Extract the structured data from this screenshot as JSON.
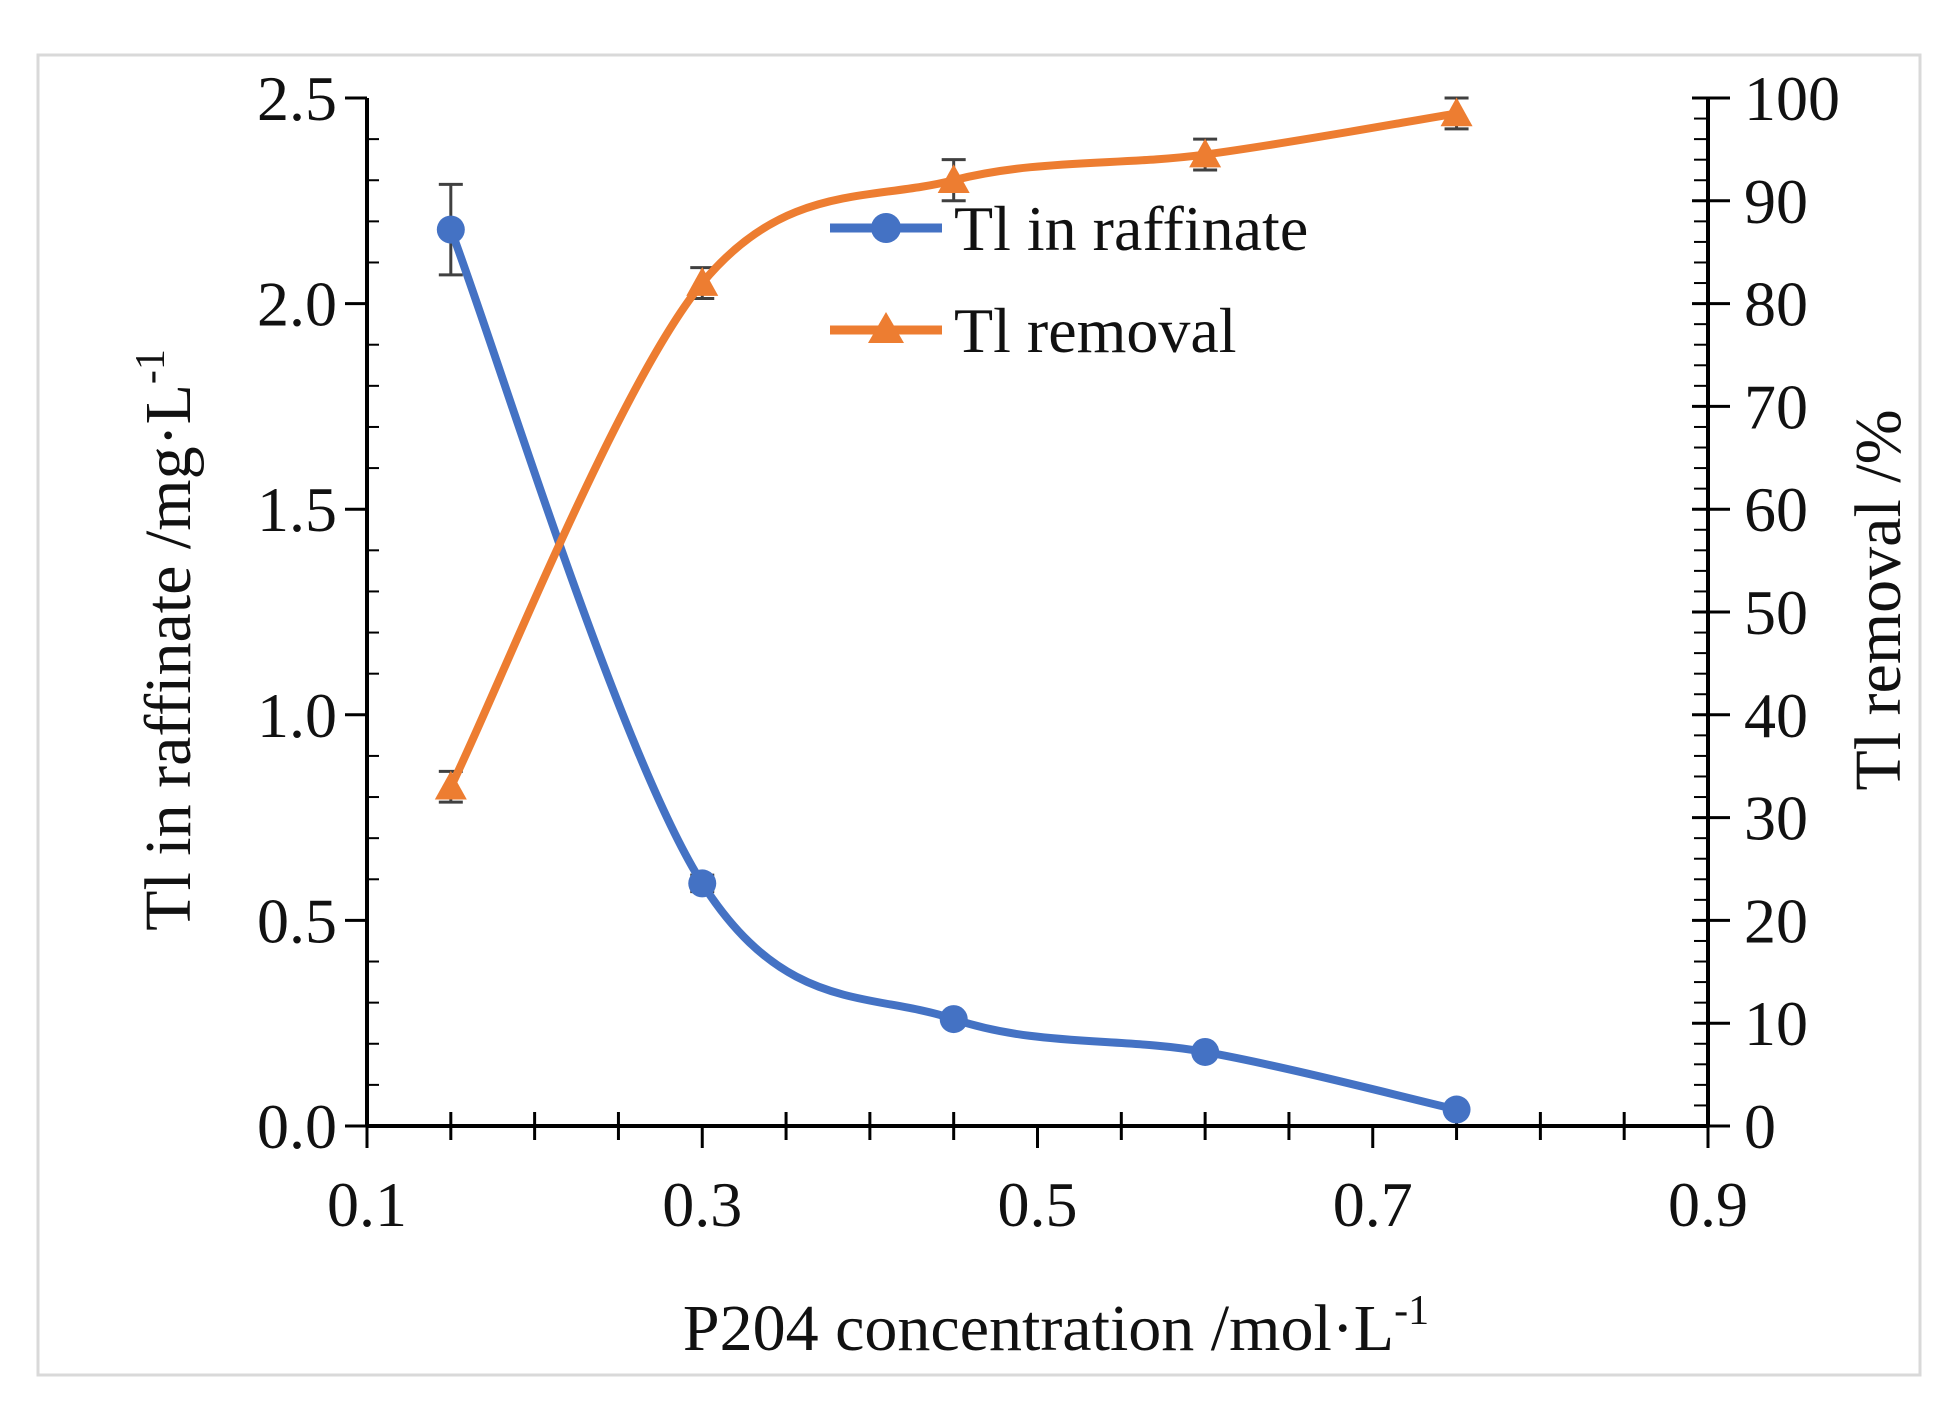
{
  "chart_data": {
    "type": "line",
    "title": "",
    "xlabel": "P204 concentration  /mol·L",
    "xlabel_sup": "-1",
    "ylabel": "Tl in raffinate   /mg·L",
    "ylabel_sup": "-1",
    "y2label": "Tl removal  /%",
    "xlim": [
      0.1,
      0.9
    ],
    "ylim": [
      0.0,
      2.5
    ],
    "y2lim": [
      0,
      100
    ],
    "xticks": [
      0.1,
      0.3,
      0.5,
      0.7,
      0.9
    ],
    "xtick_labels": [
      "0.1",
      "0.3",
      "0.5",
      "0.7",
      "0.9"
    ],
    "yticks": [
      0.0,
      0.5,
      1.0,
      1.5,
      2.0,
      2.5
    ],
    "ytick_labels": [
      "0.0",
      "0.5",
      "1.0",
      "1.5",
      "2.0",
      "2.5"
    ],
    "y2ticks": [
      0,
      10,
      20,
      30,
      40,
      50,
      60,
      70,
      80,
      90,
      100
    ],
    "y2tick_labels": [
      "0",
      "10",
      "20",
      "30",
      "40",
      "50",
      "60",
      "70",
      "80",
      "90",
      "100"
    ],
    "x": [
      0.15,
      0.3,
      0.45,
      0.6,
      0.75
    ],
    "legend_position": "top-center",
    "grid": false,
    "series": [
      {
        "name": "Tl in raffinate",
        "axis": "left",
        "marker": "circle",
        "color": "#4472C4",
        "values": [
          2.18,
          0.59,
          0.26,
          0.18,
          0.04
        ],
        "errors": [
          0.11,
          0.02,
          0.0,
          0.0,
          0.0
        ]
      },
      {
        "name": "Tl removal",
        "axis": "right",
        "marker": "triangle",
        "color": "#ED7D31",
        "values": [
          33,
          82,
          92,
          94.5,
          98.5
        ],
        "errors": [
          1.5,
          1.5,
          2.0,
          1.5,
          1.5
        ]
      }
    ]
  }
}
